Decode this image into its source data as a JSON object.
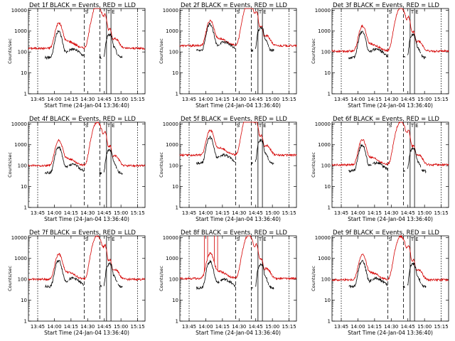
{
  "colors": {
    "events": "#000000",
    "lld": "#d40000",
    "frame": "#000000",
    "background": "#ffffff"
  },
  "shared": {
    "xlabel": "Start Time (24-Jan-04 13:36:40)",
    "ylabel": "Counts/sec",
    "x_tick_labels": [
      "13:45",
      "14:00",
      "14:15",
      "14:30",
      "14:45",
      "15:00",
      "15:15"
    ],
    "y_tick_labels": [
      "1",
      "10",
      "100",
      "1000",
      "10000"
    ],
    "xlim_minutes_after_13_36_40": [
      0,
      105
    ],
    "ylim": [
      1,
      12000
    ],
    "y_scale": "log",
    "marker_letters": {
      "dashed": "S",
      "solid_left": "T",
      "solid_right": "E"
    },
    "vline_times": {
      "dotted": "13:45",
      "dashed_1": "14:27",
      "dashed_2": "14:41",
      "solid_1": "14:47",
      "solid_2": "14:51",
      "dotted_end": "15:15"
    }
  },
  "chart_data": [
    {
      "type": "line",
      "title": "Det 1f BLACK = Events, RED = LLD",
      "series": [
        {
          "name": "Events",
          "base": 55
        },
        {
          "name": "LLD",
          "base": 150
        }
      ]
    },
    {
      "type": "line",
      "title": "Det 2f BLACK = Events, RED = LLD",
      "series": [
        {
          "name": "Events",
          "base": 120
        },
        {
          "name": "LLD",
          "base": 200
        }
      ]
    },
    {
      "type": "line",
      "title": "Det 3f BLACK = Events, RED = LLD",
      "series": [
        {
          "name": "Events",
          "base": 55
        },
        {
          "name": "LLD",
          "base": 110
        }
      ]
    },
    {
      "type": "line",
      "title": "Det 4f BLACK = Events, RED = LLD",
      "series": [
        {
          "name": "Events",
          "base": 45
        },
        {
          "name": "LLD",
          "base": 100
        }
      ]
    },
    {
      "type": "line",
      "title": "Det 5f BLACK = Events, RED = LLD",
      "series": [
        {
          "name": "Events",
          "base": 130
        },
        {
          "name": "LLD",
          "base": 320
        }
      ]
    },
    {
      "type": "line",
      "title": "Det 6f BLACK = Events, RED = LLD",
      "series": [
        {
          "name": "Events",
          "base": 55
        },
        {
          "name": "LLD",
          "base": 110
        }
      ]
    },
    {
      "type": "line",
      "title": "Det 7f BLACK = Events, RED = LLD",
      "series": [
        {
          "name": "Events",
          "base": 45
        },
        {
          "name": "LLD",
          "base": 100
        }
      ]
    },
    {
      "type": "line",
      "title": "Det 8f BLACK = Events, RED = LLD",
      "series": [
        {
          "name": "Events",
          "base": 40
        },
        {
          "name": "LLD",
          "base": 110
        }
      ]
    },
    {
      "type": "line",
      "title": "Det 9f BLACK = Events, RED = LLD",
      "series": [
        {
          "name": "Events",
          "base": 45
        },
        {
          "name": "LLD",
          "base": 95
        }
      ]
    }
  ]
}
